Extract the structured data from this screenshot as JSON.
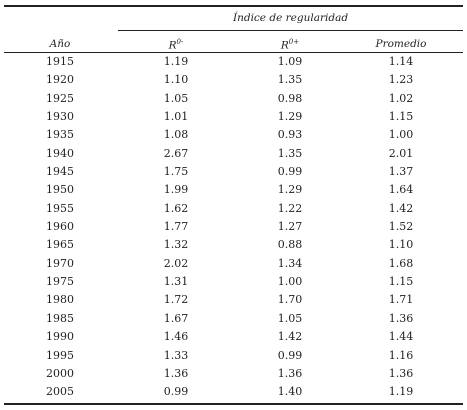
{
  "table": {
    "group_header": "Índice de regularidad",
    "columns": [
      {
        "label": "Año",
        "sup": ""
      },
      {
        "label": "R",
        "sup": "0-"
      },
      {
        "label": "R",
        "sup": "0+"
      },
      {
        "label": "Promedio",
        "sup": ""
      }
    ],
    "rows": [
      [
        "1915",
        "1.19",
        "1.09",
        "1.14"
      ],
      [
        "1920",
        "1.10",
        "1.35",
        "1.23"
      ],
      [
        "1925",
        "1.05",
        "0.98",
        "1.02"
      ],
      [
        "1930",
        "1.01",
        "1.29",
        "1.15"
      ],
      [
        "1935",
        "1.08",
        "0.93",
        "1.00"
      ],
      [
        "1940",
        "2.67",
        "1.35",
        "2.01"
      ],
      [
        "1945",
        "1.75",
        "0.99",
        "1.37"
      ],
      [
        "1950",
        "1.99",
        "1.29",
        "1.64"
      ],
      [
        "1955",
        "1.62",
        "1.22",
        "1.42"
      ],
      [
        "1960",
        "1.77",
        "1.27",
        "1.52"
      ],
      [
        "1965",
        "1.32",
        "0.88",
        "1.10"
      ],
      [
        "1970",
        "2.02",
        "1.34",
        "1.68"
      ],
      [
        "1975",
        "1.31",
        "1.00",
        "1.15"
      ],
      [
        "1980",
        "1.72",
        "1.70",
        "1.71"
      ],
      [
        "1985",
        "1.67",
        "1.05",
        "1.36"
      ],
      [
        "1990",
        "1.46",
        "1.42",
        "1.44"
      ],
      [
        "1995",
        "1.33",
        "0.99",
        "1.16"
      ],
      [
        "2000",
        "1.36",
        "1.36",
        "1.36"
      ],
      [
        "2005",
        "0.99",
        "1.40",
        "1.19"
      ]
    ]
  }
}
